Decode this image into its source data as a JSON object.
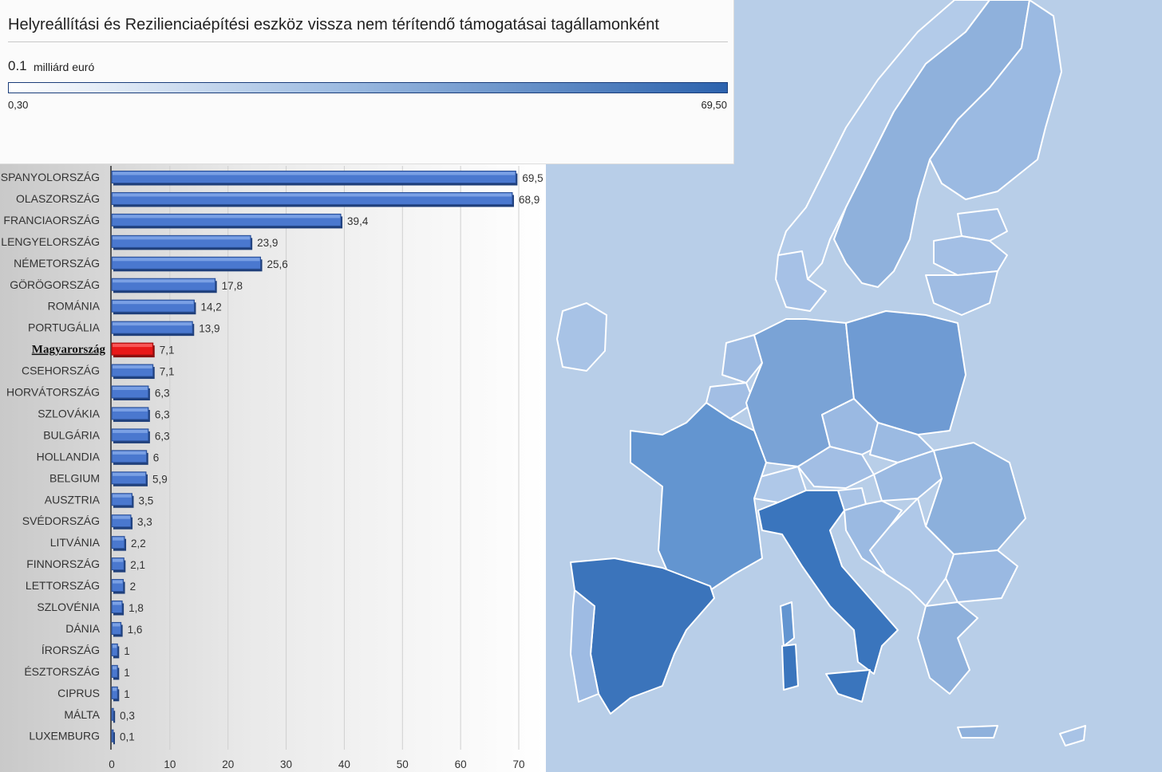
{
  "header": {
    "title": "Helyreállítási és Rezilienciaépítési eszköz vissza nem térítendő támogatásai tagállamonként",
    "legend_value": "0.1",
    "legend_unit": "milliárd euró",
    "legend_min": "0,30",
    "legend_max": "69,50",
    "legend_color_low": "#ffffff",
    "legend_color_high": "#2c62ad"
  },
  "map": {
    "background_color": "#b8cee8",
    "country_color_low": "#a9c3e6",
    "country_color_high": "#2f6db5",
    "border_color": "#ffffff"
  },
  "chart_data": {
    "type": "bar",
    "orientation": "horizontal",
    "categories": [
      "SPANYOLORSZÁG",
      "OLASZORSZÁG",
      "FRANCIAORSZÁG",
      "LENGYELORSZÁG",
      "NÉMETORSZÁG",
      "GÖRÖGORSZÁG",
      "ROMÁNIA",
      "PORTUGÁLIA",
      "Magyarország",
      "CSEHORSZÁG",
      "HORVÁTORSZÁG",
      "SZLOVÁKIA",
      "BULGÁRIA",
      "HOLLANDIA",
      "BELGIUM",
      "AUSZTRIA",
      "SVÉDORSZÁG",
      "LITVÁNIA",
      "FINNORSZÁG",
      "LETTORSZÁG",
      "SZLOVÉNIA",
      "DÁNIA",
      "ÍRORSZÁG",
      "ÉSZTORSZÁG",
      "CIPRUS",
      "MÁLTA",
      "LUXEMBURG"
    ],
    "values": [
      69.5,
      68.9,
      39.4,
      23.9,
      25.6,
      17.8,
      14.2,
      13.9,
      7.1,
      7.1,
      6.3,
      6.3,
      6.3,
      6,
      5.9,
      3.5,
      3.3,
      2.2,
      2.1,
      2,
      1.8,
      1.6,
      1,
      1,
      1,
      0.3,
      0.1
    ],
    "value_labels": [
      "69,5",
      "68,9",
      "39,4",
      "23,9",
      "25,6",
      "17,8",
      "14,2",
      "13,9",
      "7,1",
      "7,1",
      "6,3",
      "6,3",
      "6,3",
      "6",
      "5,9",
      "3,5",
      "3,3",
      "2,2",
      "2,1",
      "2",
      "1,8",
      "1,6",
      "1",
      "1",
      "1",
      "0,3",
      "0,1"
    ],
    "highlight_index": 8,
    "xlim": [
      0,
      70
    ],
    "xticks": [
      0,
      10,
      20,
      30,
      40,
      50,
      60,
      70
    ],
    "grid": true,
    "bar_color": "#4a78cf",
    "highlight_color": "#e81818"
  }
}
